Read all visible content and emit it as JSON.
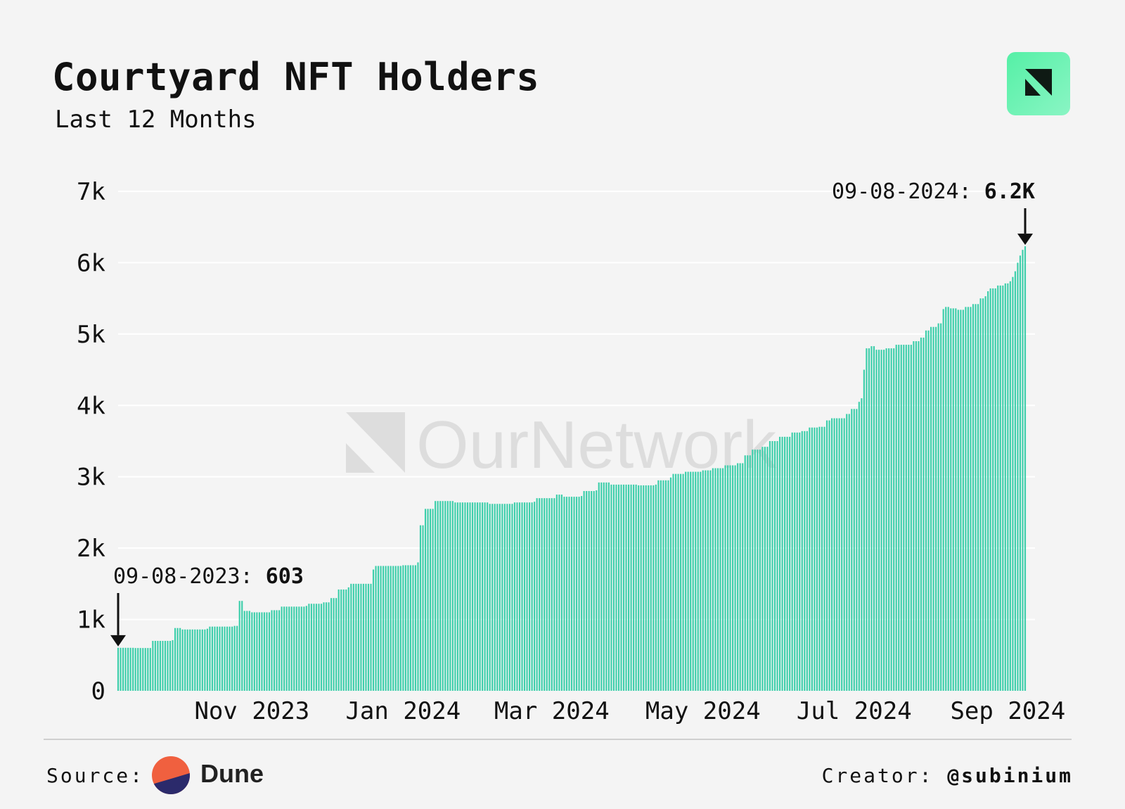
{
  "header": {
    "title": "Courtyard NFT Holders",
    "subtitle": "Last 12 Months"
  },
  "brand": {
    "logo_icon": "ournetwork-logo-icon",
    "watermark": "OurNetwork"
  },
  "footer": {
    "source_label": "Source:",
    "source_name": "Dune",
    "source_icon": "dune-logo-icon",
    "creator_label": "Creator:",
    "creator_handle": "@subinium"
  },
  "colors": {
    "bar": "#3ecfab",
    "background": "#f4f4f4",
    "accent": "#5ff2b0"
  },
  "chart_data": {
    "type": "bar",
    "title": "Courtyard NFT Holders",
    "subtitle": "Last 12 Months",
    "x_range": [
      "2023-09-08",
      "2024-09-08"
    ],
    "ylim": [
      0,
      7000
    ],
    "y_ticks": [
      0,
      1000,
      2000,
      3000,
      4000,
      5000,
      6000,
      7000
    ],
    "y_tick_labels": [
      "0",
      "1k",
      "2k",
      "3k",
      "4k",
      "5k",
      "6k",
      "7k"
    ],
    "x_ticks": [
      "2023-11-01",
      "2024-01-01",
      "2024-03-01",
      "2024-05-01",
      "2024-07-01",
      "2024-09-01"
    ],
    "x_tick_labels": [
      "Nov 2023",
      "Jan 2024",
      "Mar 2024",
      "May 2024",
      "Jul 2024",
      "Sep 2024"
    ],
    "grid": true,
    "annotations": [
      {
        "label": "09-08-2023: ",
        "value_text": "603",
        "date": "2023-09-08",
        "value": 603
      },
      {
        "label": "09-08-2024: ",
        "value_text": "6.2K",
        "date": "2024-09-08",
        "value": 6230
      }
    ],
    "series": [
      {
        "values": [
          [
            "2023-09-08",
            603
          ],
          [
            "2023-09-15",
            600
          ],
          [
            "2023-09-21",
            600
          ],
          [
            "2023-09-22",
            700
          ],
          [
            "2023-09-30",
            710
          ],
          [
            "2023-10-01",
            880
          ],
          [
            "2023-10-04",
            860
          ],
          [
            "2023-10-14",
            870
          ],
          [
            "2023-10-15",
            900
          ],
          [
            "2023-10-25",
            910
          ],
          [
            "2023-10-27",
            1260
          ],
          [
            "2023-10-29",
            1120
          ],
          [
            "2023-11-01",
            1100
          ],
          [
            "2023-11-09",
            1130
          ],
          [
            "2023-11-13",
            1180
          ],
          [
            "2023-11-23",
            1190
          ],
          [
            "2023-11-24",
            1220
          ],
          [
            "2023-11-30",
            1240
          ],
          [
            "2023-12-03",
            1300
          ],
          [
            "2023-12-06",
            1420
          ],
          [
            "2023-12-10",
            1450
          ],
          [
            "2023-12-11",
            1500
          ],
          [
            "2023-12-19",
            1500
          ],
          [
            "2023-12-20",
            1700
          ],
          [
            "2023-12-21",
            1750
          ],
          [
            "2024-01-01",
            1760
          ],
          [
            "2024-01-07",
            1800
          ],
          [
            "2024-01-08",
            2320
          ],
          [
            "2024-01-10",
            2550
          ],
          [
            "2024-01-14",
            2660
          ],
          [
            "2024-01-22",
            2640
          ],
          [
            "2024-02-05",
            2620
          ],
          [
            "2024-02-15",
            2640
          ],
          [
            "2024-02-23",
            2650
          ],
          [
            "2024-02-24",
            2700
          ],
          [
            "2024-03-02",
            2700
          ],
          [
            "2024-03-03",
            2750
          ],
          [
            "2024-03-06",
            2720
          ],
          [
            "2024-03-13",
            2730
          ],
          [
            "2024-03-14",
            2800
          ],
          [
            "2024-03-19",
            2810
          ],
          [
            "2024-03-20",
            2920
          ],
          [
            "2024-03-25",
            2890
          ],
          [
            "2024-04-05",
            2880
          ],
          [
            "2024-04-12",
            2890
          ],
          [
            "2024-04-13",
            2950
          ],
          [
            "2024-04-18",
            2990
          ],
          [
            "2024-04-19",
            3040
          ],
          [
            "2024-04-24",
            3070
          ],
          [
            "2024-05-01",
            3090
          ],
          [
            "2024-05-05",
            3120
          ],
          [
            "2024-05-10",
            3160
          ],
          [
            "2024-05-15",
            3190
          ],
          [
            "2024-05-18",
            3300
          ],
          [
            "2024-05-21",
            3380
          ],
          [
            "2024-05-25",
            3420
          ],
          [
            "2024-05-28",
            3500
          ],
          [
            "2024-06-01",
            3560
          ],
          [
            "2024-06-06",
            3620
          ],
          [
            "2024-06-10",
            3640
          ],
          [
            "2024-06-13",
            3690
          ],
          [
            "2024-06-17",
            3700
          ],
          [
            "2024-06-20",
            3790
          ],
          [
            "2024-06-22",
            3820
          ],
          [
            "2024-06-28",
            3880
          ],
          [
            "2024-06-30",
            3950
          ],
          [
            "2024-07-03",
            4050
          ],
          [
            "2024-07-04",
            4100
          ],
          [
            "2024-07-05",
            4500
          ],
          [
            "2024-07-06",
            4800
          ],
          [
            "2024-07-08",
            4830
          ],
          [
            "2024-07-10",
            4780
          ],
          [
            "2024-07-14",
            4800
          ],
          [
            "2024-07-18",
            4850
          ],
          [
            "2024-07-25",
            4900
          ],
          [
            "2024-07-28",
            4950
          ],
          [
            "2024-07-30",
            5050
          ],
          [
            "2024-08-01",
            5100
          ],
          [
            "2024-08-04",
            5150
          ],
          [
            "2024-08-06",
            5350
          ],
          [
            "2024-08-07",
            5380
          ],
          [
            "2024-08-09",
            5360
          ],
          [
            "2024-08-12",
            5340
          ],
          [
            "2024-08-15",
            5380
          ],
          [
            "2024-08-18",
            5420
          ],
          [
            "2024-08-21",
            5500
          ],
          [
            "2024-08-23",
            5530
          ],
          [
            "2024-08-24",
            5600
          ],
          [
            "2024-08-25",
            5640
          ],
          [
            "2024-08-28",
            5680
          ],
          [
            "2024-08-31",
            5710
          ],
          [
            "2024-09-02",
            5740
          ],
          [
            "2024-09-03",
            5800
          ],
          [
            "2024-09-04",
            5880
          ],
          [
            "2024-09-05",
            6000
          ],
          [
            "2024-09-06",
            6100
          ],
          [
            "2024-09-07",
            6180
          ],
          [
            "2024-09-08",
            6230
          ]
        ]
      }
    ]
  }
}
